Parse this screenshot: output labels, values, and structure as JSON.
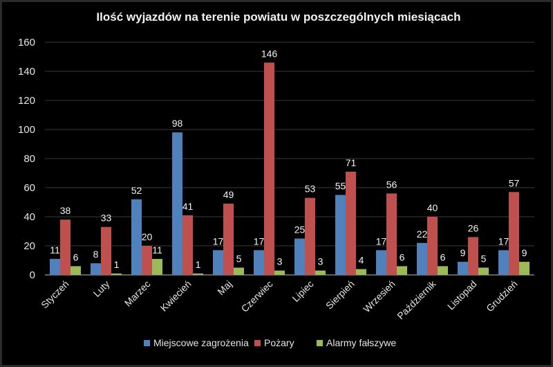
{
  "chart_data": {
    "type": "bar",
    "title": "Ilość wyjazdów na terenie powiatu w poszczególnych miesiącach",
    "xlabel": "",
    "ylabel": "",
    "ylim": [
      0,
      160
    ],
    "yticks": [
      0,
      20,
      40,
      60,
      80,
      100,
      120,
      140,
      160
    ],
    "grid": true,
    "legend_position": "bottom",
    "categories": [
      "Styczeń",
      "Luty",
      "Marzec",
      "Kwiecień",
      "Maj",
      "Czerwiec",
      "Lipiec",
      "Sierpień",
      "Wrzesień",
      "Październik",
      "Listopad",
      "Grudzień"
    ],
    "series": [
      {
        "name": "Miejscowe zagrożenia",
        "color": "#4f81bd",
        "values": [
          11,
          8,
          52,
          98,
          17,
          17,
          25,
          55,
          17,
          22,
          9,
          17
        ]
      },
      {
        "name": "Pożary",
        "color": "#c0504d",
        "values": [
          38,
          33,
          20,
          41,
          49,
          146,
          53,
          71,
          56,
          40,
          26,
          57
        ]
      },
      {
        "name": "Alarmy fałszywe",
        "color": "#9bbb59",
        "values": [
          6,
          1,
          11,
          1,
          5,
          3,
          3,
          4,
          6,
          6,
          5,
          9
        ]
      }
    ]
  }
}
